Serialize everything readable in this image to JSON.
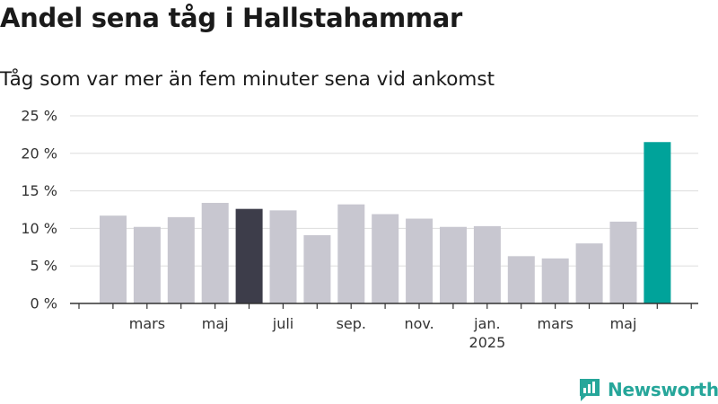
{
  "title": "Andel sena tåg i Hallstahammar",
  "subtitle": "Tåg som var mer än fem minuter sena vid ankomst",
  "logo_text": "Newsworthy",
  "colors": {
    "bar_default": "#c8c7d0",
    "bar_highlight_dark": "#3d3d4a",
    "bar_highlight_accent": "#00a39a",
    "grid": "#dddddd",
    "axis": "#333333",
    "brand": "#26a69a"
  },
  "chart_data": {
    "type": "bar",
    "values": [
      11.7,
      10.2,
      11.5,
      13.4,
      12.6,
      12.4,
      9.1,
      13.2,
      11.9,
      11.3,
      10.2,
      10.3,
      6.3,
      6.0,
      8.0,
      10.9,
      21.5
    ],
    "bar_colors": [
      "default",
      "default",
      "default",
      "default",
      "dark",
      "default",
      "default",
      "default",
      "default",
      "default",
      "default",
      "default",
      "default",
      "default",
      "default",
      "default",
      "accent"
    ],
    "x_tick_labels": [
      {
        "line1": "mars",
        "line2": ""
      },
      {
        "line1": "maj",
        "line2": ""
      },
      {
        "line1": "juli",
        "line2": ""
      },
      {
        "line1": "sep.",
        "line2": ""
      },
      {
        "line1": "nov.",
        "line2": ""
      },
      {
        "line1": "jan.",
        "line2": "2025"
      },
      {
        "line1": "mars",
        "line2": ""
      },
      {
        "line1": "maj",
        "line2": ""
      }
    ],
    "y_ticks": [
      0,
      5,
      10,
      15,
      20,
      25
    ],
    "y_tick_labels": [
      "0 %",
      "5 %",
      "10 %",
      "15 %",
      "20 %",
      "25 %"
    ],
    "ylim": [
      0,
      25
    ],
    "grid": true
  }
}
